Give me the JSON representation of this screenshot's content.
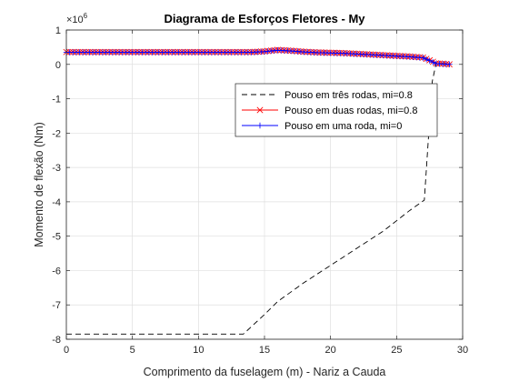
{
  "chart_data": {
    "type": "line",
    "title": "Diagrama de Esforços Fletores - My",
    "xlabel": "Comprimento da fuselagem (m) - Nariz a Cauda",
    "ylabel": "Momento de flexão (Nm)",
    "y_exponent_label": "×10",
    "y_exponent_power": "6",
    "xlim": [
      0,
      30
    ],
    "ylim": [
      -8,
      1
    ],
    "xticks": [
      0,
      5,
      10,
      15,
      20,
      25,
      30
    ],
    "yticks": [
      -8,
      -7,
      -6,
      -5,
      -4,
      -3,
      -2,
      -1,
      0,
      1
    ],
    "x_tick_labels": [
      "0",
      "5",
      "10",
      "15",
      "20",
      "25",
      "30"
    ],
    "y_tick_labels": [
      "-8",
      "-7",
      "-6",
      "-5",
      "-4",
      "-3",
      "-2",
      "-1",
      "0",
      "1"
    ],
    "grid": true,
    "legend_position": "right",
    "series": [
      {
        "name": "Pouso em três rodas, mi=0.8",
        "color": "#000000",
        "style": "dashed",
        "marker": "none",
        "x": [
          0,
          5,
          10,
          13.4,
          15,
          16,
          18,
          20,
          22,
          24,
          26,
          27.1,
          27.4,
          27.7,
          28.0,
          28.4,
          28.7,
          29.0
        ],
        "y": [
          -7.85,
          -7.85,
          -7.85,
          -7.85,
          -7.28,
          -6.9,
          -6.35,
          -5.85,
          -5.35,
          -4.85,
          -4.25,
          -3.95,
          -2.2,
          -0.5,
          0.05,
          0.03,
          0.02,
          0.0
        ]
      },
      {
        "name": "Pouso em duas rodas, mi=0.8",
        "color": "#ff0000",
        "style": "solid",
        "marker": "x",
        "x": [
          0,
          2,
          4,
          6,
          8,
          10,
          12,
          14,
          15,
          16,
          17,
          18,
          19,
          20,
          21,
          22,
          23,
          24,
          25,
          26,
          27,
          27.5,
          28,
          28.5,
          29
        ],
        "y": [
          0.36,
          0.36,
          0.36,
          0.36,
          0.36,
          0.36,
          0.36,
          0.36,
          0.38,
          0.42,
          0.4,
          0.37,
          0.35,
          0.34,
          0.33,
          0.31,
          0.29,
          0.27,
          0.25,
          0.23,
          0.2,
          0.12,
          0.03,
          0.02,
          0.0
        ]
      },
      {
        "name": "Pouso em uma roda, mi=0",
        "color": "#0000ff",
        "style": "solid",
        "marker": "+",
        "x": [
          0,
          2,
          4,
          6,
          8,
          10,
          12,
          14,
          15,
          16,
          17,
          18,
          19,
          20,
          21,
          22,
          23,
          24,
          25,
          26,
          27,
          27.5,
          28,
          28.5,
          29
        ],
        "y": [
          0.35,
          0.35,
          0.35,
          0.35,
          0.35,
          0.35,
          0.35,
          0.35,
          0.37,
          0.41,
          0.39,
          0.36,
          0.34,
          0.33,
          0.32,
          0.3,
          0.28,
          0.26,
          0.24,
          0.22,
          0.19,
          0.11,
          0.02,
          0.01,
          0.0
        ]
      }
    ]
  }
}
